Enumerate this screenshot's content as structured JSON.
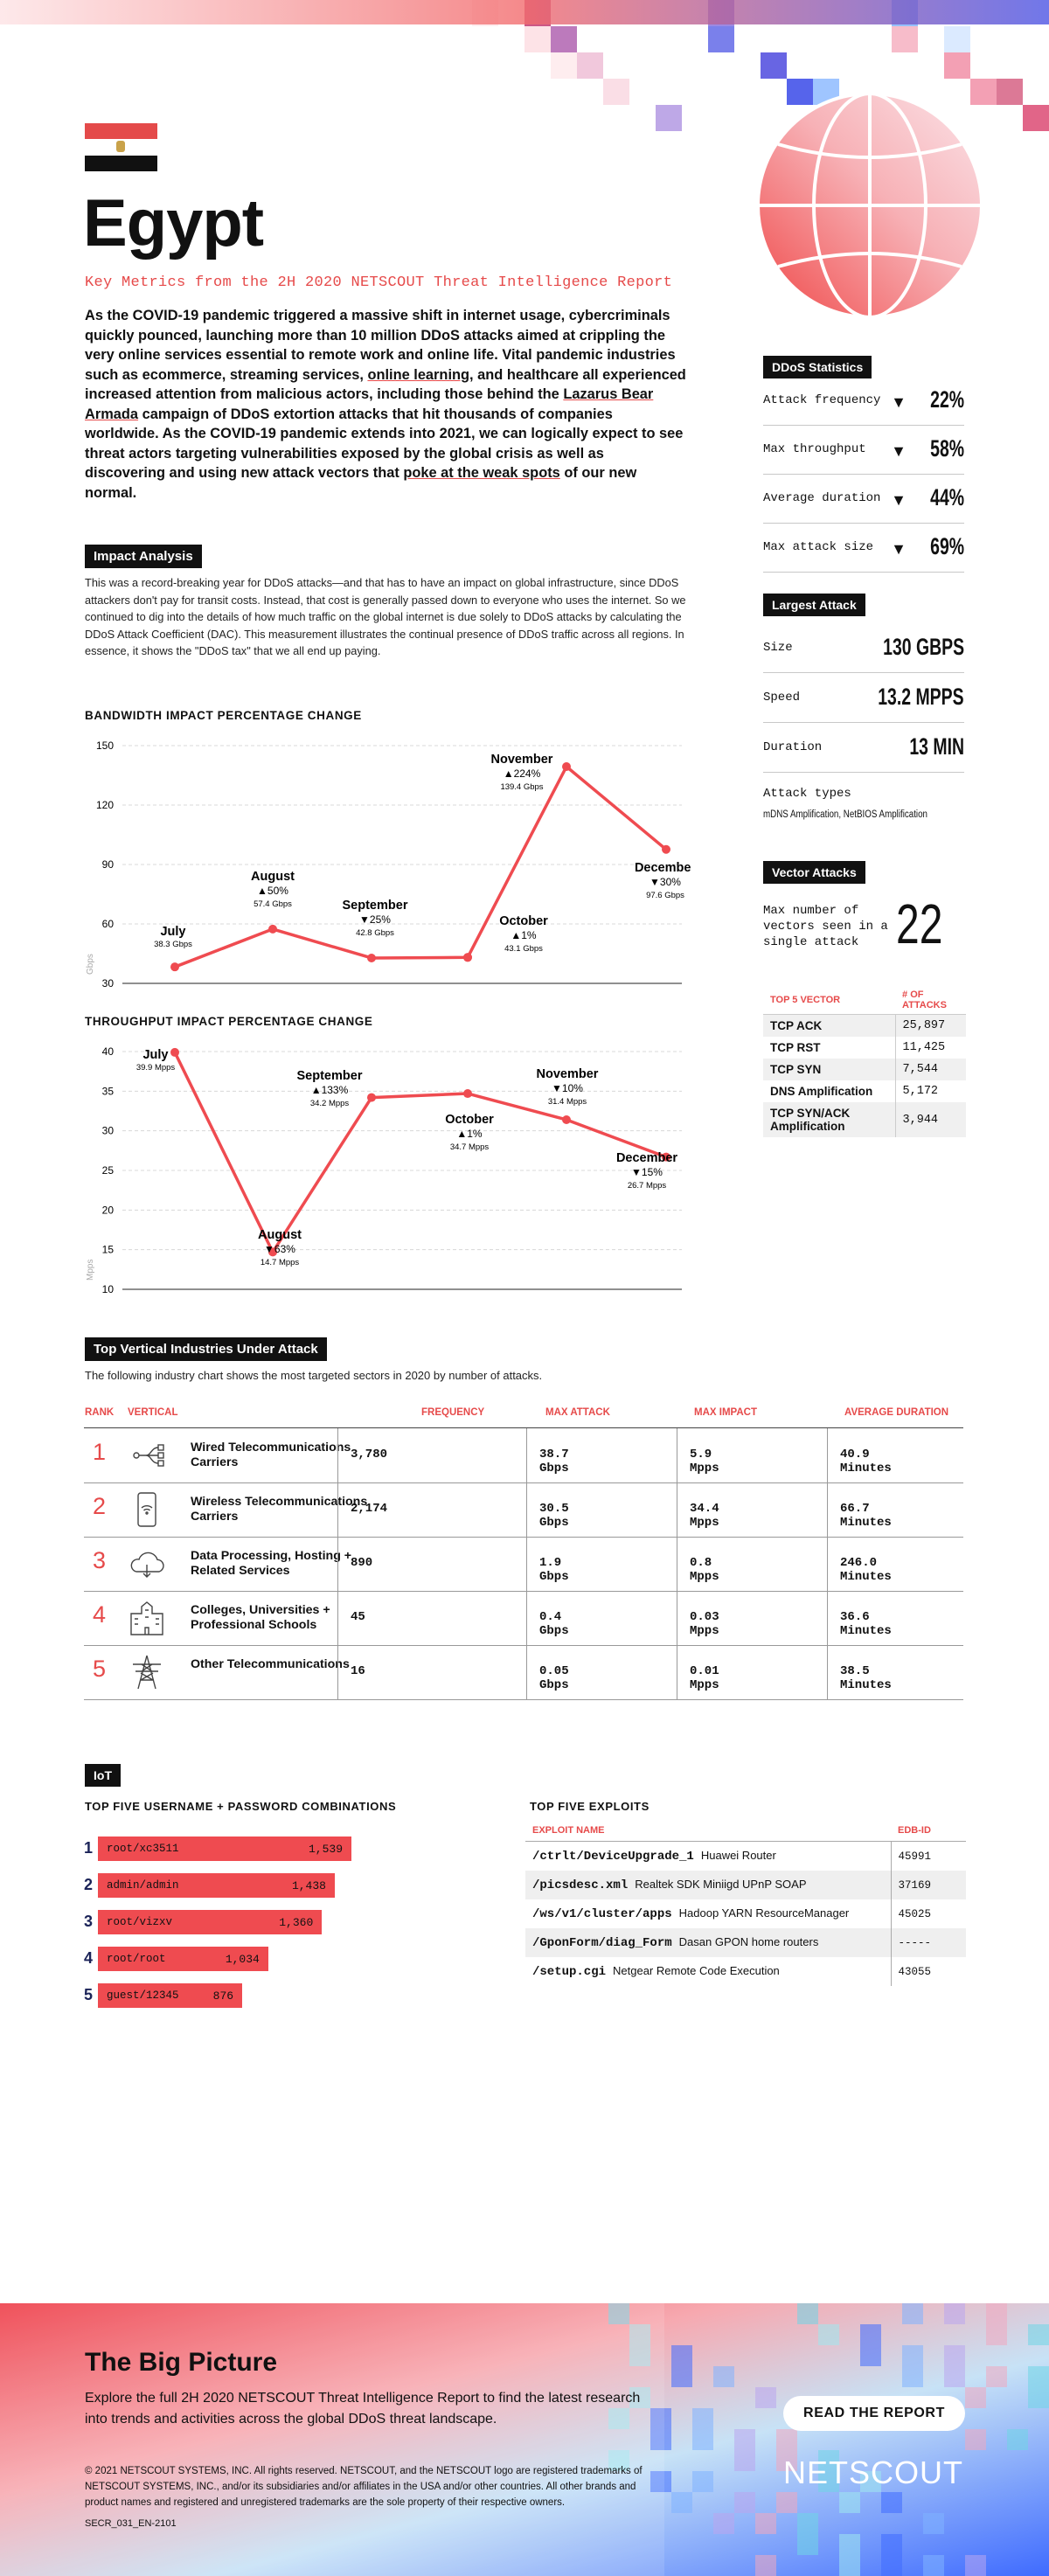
{
  "header": {
    "country": "Egypt",
    "subtitle": "Key Metrics from the 2H 2020 NETSCOUT Threat Intelligence Report",
    "flag_colors": [
      "#e44a4a",
      "#ffffff",
      "#111111"
    ]
  },
  "intro": {
    "p1": "As the COVID-19 pandemic triggered a massive shift in internet usage, cybercriminals quickly pounced, launching more than 10 million DDoS attacks aimed at crippling the very online services essential to remote work and online life. Vital pandemic industries such as ecommerce, streaming services, ",
    "link1": "online learning",
    "p2": ", and healthcare all experienced increased attention from malicious actors, including those behind the ",
    "link2": "Lazarus Bear Armada",
    "p3": " campaign of DDoS extortion attacks that hit thousands of companies worldwide. As the COVID-19 pandemic extends into 2021, we can logically expect to see threat actors targeting vulnerabilities exposed by the global crisis as well as discovering and using new attack vectors that ",
    "link3": "poke at the weak spots",
    "p4": " of our new normal."
  },
  "impact": {
    "heading": "Impact Analysis",
    "text": "This was a record-breaking year for DDoS attacks—and that has to have an impact on global infrastructure, since DDoS attackers don't pay for transit costs. Instead, that cost is generally passed down to everyone who uses the internet. So we continued to dig into the details of how much traffic on the global internet is due solely to DDoS attacks by calculating the DDoS Attack Coefficient (DAC). This measurement illustrates the continual presence of DDoS traffic across all regions. In essence, it shows the \"DDoS tax\" that we all end up paying."
  },
  "ddos_stats": {
    "heading": "DDoS Statistics",
    "rows": [
      {
        "label": "Attack frequency",
        "value": "22%",
        "arrow": "▼"
      },
      {
        "label": "Max throughput",
        "value": "58%",
        "arrow": "▼"
      },
      {
        "label": "Average duration",
        "value": "44%",
        "arrow": "▼"
      },
      {
        "label": "Max attack size",
        "value": "69%",
        "arrow": "▼"
      }
    ]
  },
  "largest_attack": {
    "heading": "Largest Attack",
    "rows": [
      {
        "label": "Size",
        "value": "130 GBPS"
      },
      {
        "label": "Speed",
        "value": "13.2 MPPS"
      },
      {
        "label": "Duration",
        "value": "13 MIN"
      }
    ],
    "types_label": "Attack types",
    "types_value": "mDNS Amplification, NetBIOS Amplification"
  },
  "vector_attacks": {
    "heading": "Vector Attacks",
    "max_label": "Max number of vectors seen in a single attack",
    "max_value": "22",
    "col1": "TOP 5 VECTOR",
    "col2": "# OF ATTACKS",
    "rows": [
      {
        "vector": "TCP ACK",
        "attacks": "25,897"
      },
      {
        "vector": "TCP RST",
        "attacks": "11,425"
      },
      {
        "vector": "TCP SYN",
        "attacks": "7,544"
      },
      {
        "vector": "DNS Amplification",
        "attacks": "5,172"
      },
      {
        "vector": "TCP SYN/ACK Amplification",
        "attacks": "3,944"
      }
    ]
  },
  "chart_data": [
    {
      "type": "line",
      "title": "BANDWIDTH IMPACT PERCENTAGE CHANGE",
      "ylabel": "Gbps",
      "ylim": [
        30,
        150
      ],
      "yticks": [
        30,
        60,
        90,
        120,
        150
      ],
      "grid": true,
      "categories": [
        "July",
        "August",
        "September",
        "",
        "October",
        "November",
        "December"
      ],
      "values": [
        38.3,
        57.4,
        42.8,
        43.1,
        43.1,
        139.4,
        97.6
      ],
      "labels": [
        {
          "month": "July",
          "change": "",
          "value": "38.3 Gbps"
        },
        {
          "month": "August",
          "change": "▲50%",
          "value": "57.4 Gbps"
        },
        {
          "month": "September",
          "change": "▼25%",
          "value": "42.8 Gbps"
        },
        {
          "month": "October",
          "change": "▲1%",
          "value": "43.1 Gbps"
        },
        {
          "month": "November",
          "change": "▲224%",
          "value": "139.4 Gbps"
        },
        {
          "month": "December",
          "change": "▼30%",
          "value": "97.6 Gbps"
        }
      ]
    },
    {
      "type": "line",
      "title": "THROUGHPUT IMPACT PERCENTAGE CHANGE",
      "ylabel": "Mpps",
      "ylim": [
        10,
        40
      ],
      "yticks": [
        10,
        15,
        20,
        25,
        30,
        35,
        40
      ],
      "grid": true,
      "categories": [
        "July",
        "August",
        "September",
        "October",
        "November",
        "December"
      ],
      "values": [
        39.9,
        14.7,
        34.2,
        34.7,
        31.4,
        26.7
      ],
      "labels": [
        {
          "month": "July",
          "change": "",
          "value": "39.9 Mpps"
        },
        {
          "month": "August",
          "change": "▼63%",
          "value": "14.7 Mpps"
        },
        {
          "month": "September",
          "change": "▲133%",
          "value": "34.2 Mpps"
        },
        {
          "month": "October",
          "change": "▲1%",
          "value": "34.7 Mpps"
        },
        {
          "month": "November",
          "change": "▼10%",
          "value": "31.4 Mpps"
        },
        {
          "month": "December",
          "change": "▼15%",
          "value": "26.7 Mpps"
        }
      ]
    }
  ],
  "industries": {
    "heading": "Top Vertical Industries Under Attack",
    "intro": "The following industry chart shows the most targeted sectors in 2020 by number of attacks.",
    "columns": [
      "RANK",
      "VERTICAL",
      "FREQUENCY",
      "MAX ATTACK",
      "MAX IMPACT",
      "AVERAGE DURATION"
    ],
    "rows": [
      {
        "rank": "1",
        "icon": "network-cable-icon",
        "name": "Wired Telecommunications Carriers",
        "frequency": "3,780",
        "max_attack": "38.7 Gbps",
        "max_impact": "5.9 Mpps",
        "avg_duration": "40.9 Minutes"
      },
      {
        "rank": "2",
        "icon": "smartphone-icon",
        "name": "Wireless Telecommunications Carriers",
        "frequency": "2,174",
        "max_attack": "30.5 Gbps",
        "max_impact": "34.4 Mpps",
        "avg_duration": "66.7 Minutes"
      },
      {
        "rank": "3",
        "icon": "cloud-icon",
        "name": "Data Processing, Hosting + Related Services",
        "frequency": "890",
        "max_attack": "1.9 Gbps",
        "max_impact": "0.8 Mpps",
        "avg_duration": "246.0 Minutes"
      },
      {
        "rank": "4",
        "icon": "school-building-icon",
        "name": "Colleges, Universities + Professional Schools",
        "frequency": "45",
        "max_attack": "0.4 Gbps",
        "max_impact": "0.03 Mpps",
        "avg_duration": "36.6 Minutes"
      },
      {
        "rank": "5",
        "icon": "transmission-tower-icon",
        "name": "Other Telecommunications",
        "frequency": "16",
        "max_attack": "0.05 Gbps",
        "max_impact": "0.01 Mpps",
        "avg_duration": "38.5 Minutes"
      }
    ]
  },
  "iot": {
    "heading": "IoT",
    "creds_title": "TOP FIVE USERNAME + PASSWORD COMBINATIONS",
    "creds": [
      {
        "n": "1",
        "combo": "root/xc3511",
        "count": "1,539",
        "value": 1539
      },
      {
        "n": "2",
        "combo": "admin/admin",
        "count": "1,438",
        "value": 1438
      },
      {
        "n": "3",
        "combo": "root/vizxv",
        "count": "1,360",
        "value": 1360
      },
      {
        "n": "4",
        "combo": "root/root",
        "count": "1,034",
        "value": 1034
      },
      {
        "n": "5",
        "combo": "guest/12345",
        "count": "876",
        "value": 876
      }
    ],
    "exploits_title": "TOP FIVE EXPLOITS",
    "exploit_col1": "EXPLOIT NAME",
    "exploit_col2": "EDB-ID",
    "exploits": [
      {
        "path": "/ctrlt/DeviceUpgrade_1",
        "desc": "Huawei Router",
        "id": "45991"
      },
      {
        "path": "/picsdesc.xml",
        "desc": "Realtek SDK Miniigd UPnP SOAP",
        "id": "37169"
      },
      {
        "path": "/ws/v1/cluster/apps",
        "desc": "Hadoop YARN ResourceManager",
        "id": "45025"
      },
      {
        "path": "/GponForm/diag_Form",
        "desc": "Dasan GPON home routers",
        "id": "-----"
      },
      {
        "path": "/setup.cgi",
        "desc": "Netgear Remote Code Execution",
        "id": "43055"
      }
    ]
  },
  "footer": {
    "title": "The Big Picture",
    "text": "Explore the full 2H 2020 NETSCOUT Threat Intelligence Report to find the latest research into trends and activities across the global DDoS threat landscape.",
    "button": "READ THE REPORT",
    "brand": "NETSCOUT",
    "legal": "© 2021 NETSCOUT SYSTEMS, INC. All rights reserved. NETSCOUT, and the NETSCOUT logo are registered trademarks of NETSCOUT SYSTEMS, INC., and/or its subsidiaries and/or affiliates in the USA and/or other countries. All other brands and product names and registered and unregistered trademarks are the sole property of their respective owners.",
    "code": "SECR_031_EN-2101"
  },
  "colors": {
    "accent": "#e64a4a",
    "line": "#ef4b50",
    "dark": "#111111",
    "navy": "#1b2358"
  }
}
